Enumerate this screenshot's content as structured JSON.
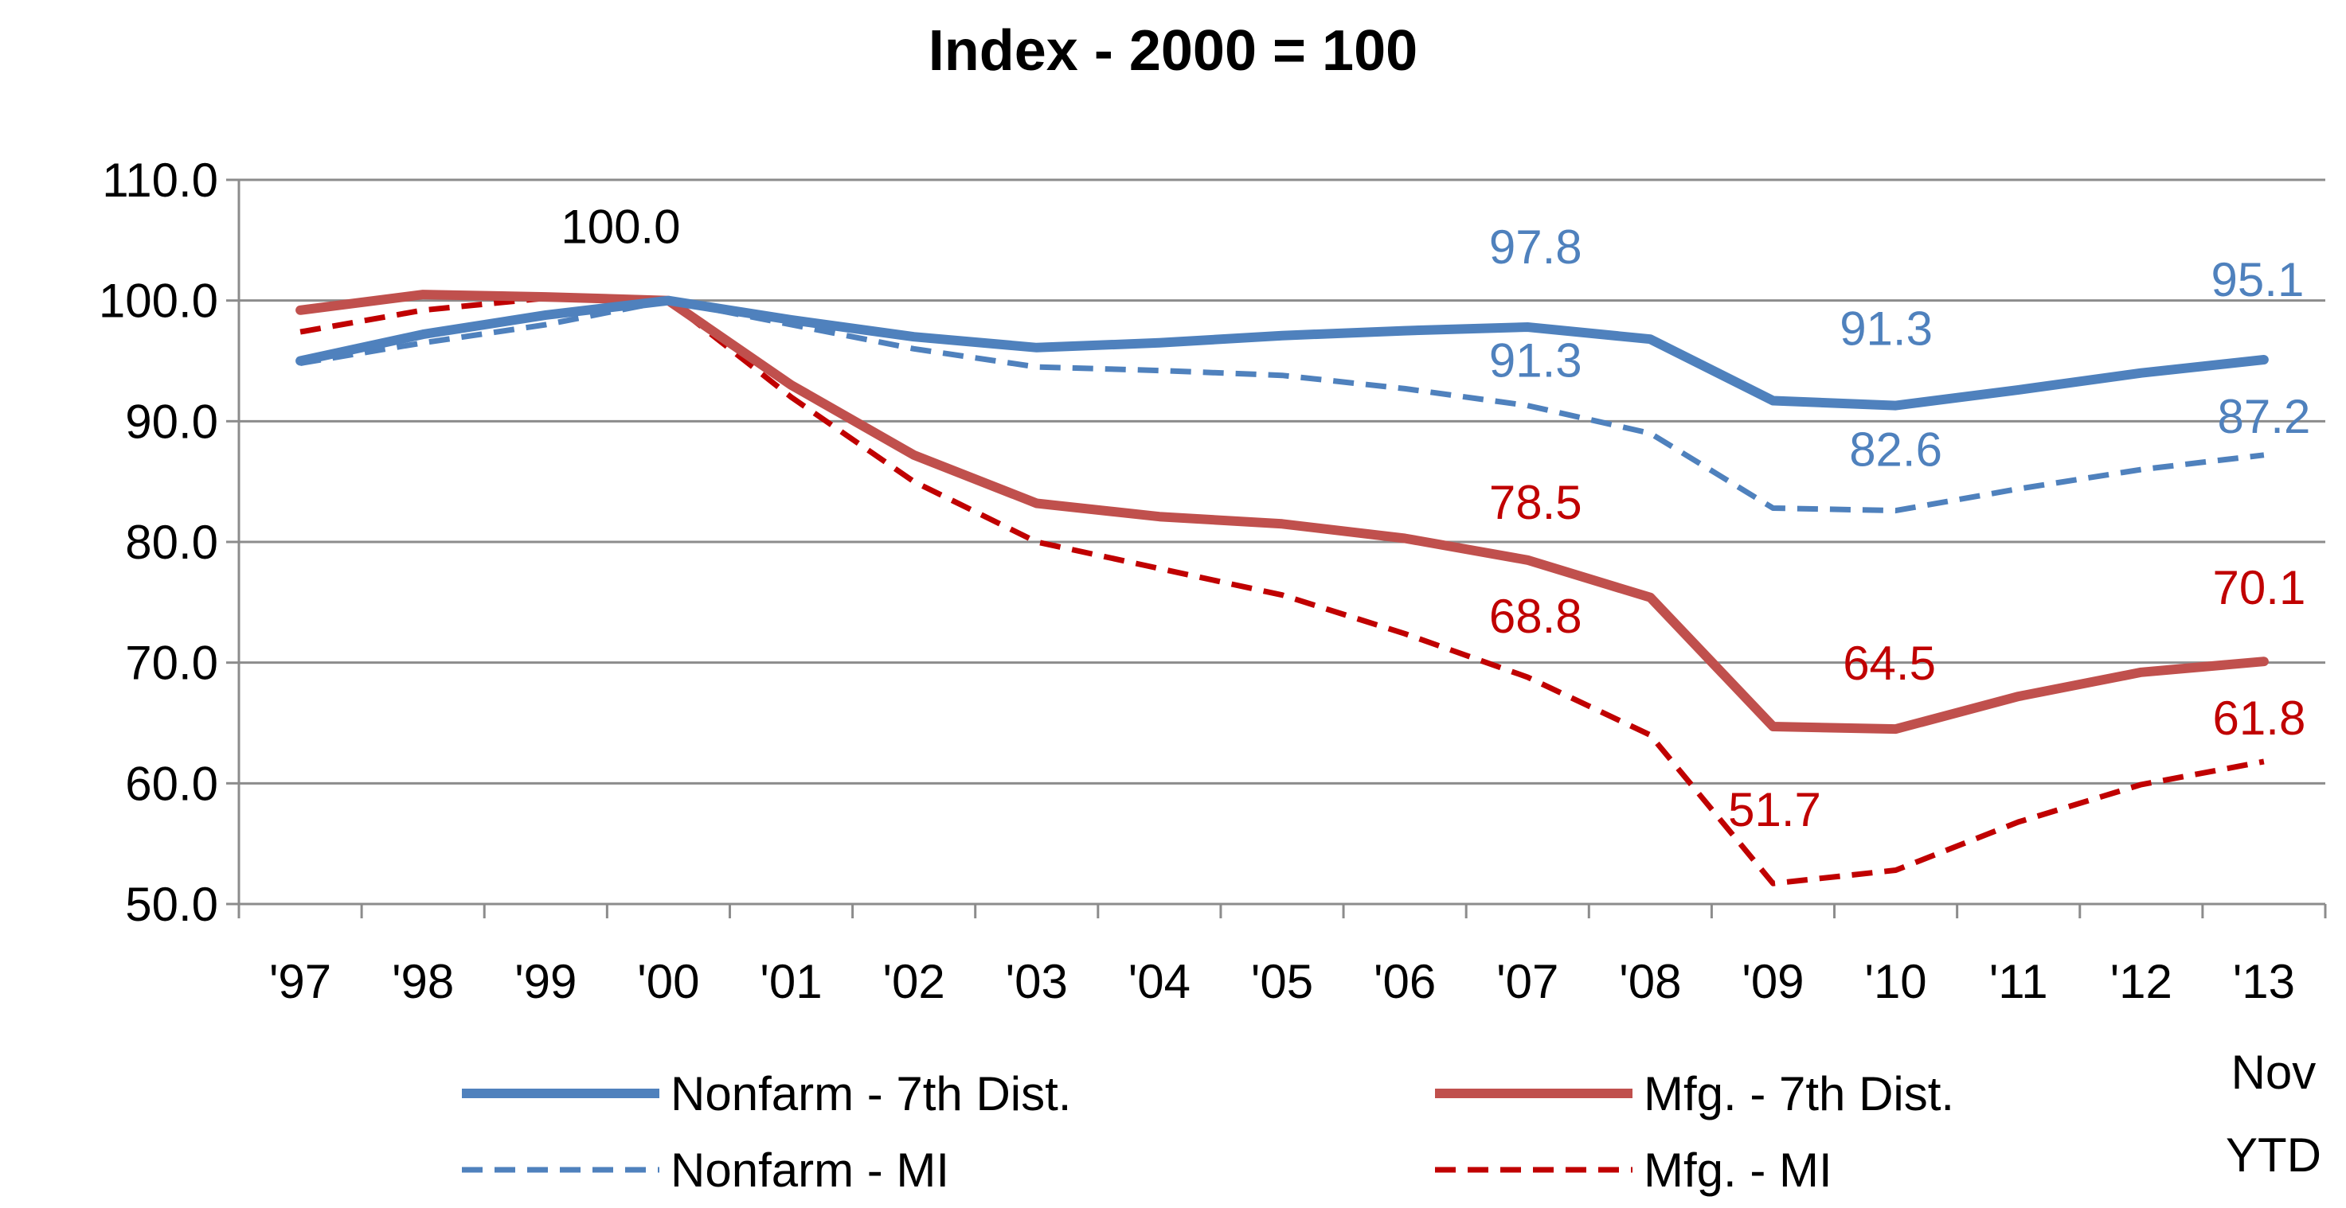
{
  "chart_data": {
    "type": "line",
    "title": "Index - 2000 = 100",
    "xlabel": "",
    "ylabel": "",
    "categories": [
      "'97",
      "'98",
      "'99",
      "'00",
      "'01",
      "'02",
      "'03",
      "'04",
      "'05",
      "'06",
      "'07",
      "'08",
      "'09",
      "'10",
      "'11",
      "'12",
      "'13"
    ],
    "x_note": [
      "Nov",
      "YTD"
    ],
    "ylim": [
      50,
      110
    ],
    "ytick_values": [
      50,
      60,
      70,
      80,
      90,
      100,
      110
    ],
    "ytick_labels": [
      "50.0",
      "60.0",
      "70.0",
      "80.0",
      "90.0",
      "100.0",
      "110.0"
    ],
    "grid": "horizontal",
    "legend_position": "bottom",
    "series": [
      {
        "name": "Nonfarm - 7th Dist.",
        "color": "#4F81BD",
        "style": "solid",
        "values": [
          95.0,
          97.2,
          98.8,
          100.0,
          98.4,
          97.0,
          96.1,
          96.5,
          97.1,
          97.5,
          97.8,
          96.8,
          91.7,
          91.3,
          92.6,
          94.0,
          95.1
        ]
      },
      {
        "name": "Mfg. - 7th Dist.",
        "color": "#C0504D",
        "style": "solid",
        "values": [
          99.2,
          100.5,
          100.3,
          100.0,
          93.0,
          87.2,
          83.2,
          82.1,
          81.5,
          80.3,
          78.5,
          75.4,
          64.7,
          64.5,
          67.2,
          69.2,
          70.1
        ]
      },
      {
        "name": "Nonfarm - MI",
        "color": "#4F81BD",
        "style": "dashed",
        "values": [
          94.8,
          96.5,
          98.0,
          100.0,
          98.0,
          96.0,
          94.5,
          94.2,
          93.8,
          92.7,
          91.3,
          89.0,
          82.8,
          82.6,
          84.4,
          86.0,
          87.2
        ]
      },
      {
        "name": "Mfg. - MI",
        "color": "#C00000",
        "style": "dashed",
        "values": [
          97.4,
          99.2,
          100.2,
          100.0,
          92.0,
          85.0,
          80.0,
          77.8,
          75.6,
          72.4,
          68.8,
          64.0,
          51.7,
          52.8,
          56.8,
          59.9,
          61.8
        ]
      }
    ],
    "data_labels": [
      {
        "series": "Nonfarm - 7th Dist.",
        "category": "'00",
        "text": "100.0",
        "color": "#000000"
      },
      {
        "series": "Nonfarm - 7th Dist.",
        "category": "'07",
        "text": "97.8",
        "color": "#4F81BD"
      },
      {
        "series": "Nonfarm - 7th Dist.",
        "category": "'10",
        "text": "91.3",
        "color": "#4F81BD"
      },
      {
        "series": "Nonfarm - 7th Dist.",
        "category": "'13",
        "text": "95.1",
        "color": "#4F81BD"
      },
      {
        "series": "Nonfarm - MI",
        "category": "'07",
        "text": "91.3",
        "color": "#4F81BD"
      },
      {
        "series": "Nonfarm - MI",
        "category": "'10",
        "text": "82.6",
        "color": "#4F81BD"
      },
      {
        "series": "Nonfarm - MI",
        "category": "'13",
        "text": "87.2",
        "color": "#4F81BD"
      },
      {
        "series": "Mfg. - 7th Dist.",
        "category": "'07",
        "text": "78.5",
        "color": "#C00000"
      },
      {
        "series": "Mfg. - 7th Dist.",
        "category": "'10",
        "text": "64.5",
        "color": "#C00000"
      },
      {
        "series": "Mfg. - 7th Dist.",
        "category": "'13",
        "text": "70.1",
        "color": "#C00000"
      },
      {
        "series": "Mfg. - MI",
        "category": "'07",
        "text": "68.8",
        "color": "#C00000"
      },
      {
        "series": "Mfg. - MI",
        "category": "'09",
        "text": "51.7",
        "color": "#C00000"
      },
      {
        "series": "Mfg. - MI",
        "category": "'13",
        "text": "61.8",
        "color": "#C00000"
      }
    ]
  }
}
